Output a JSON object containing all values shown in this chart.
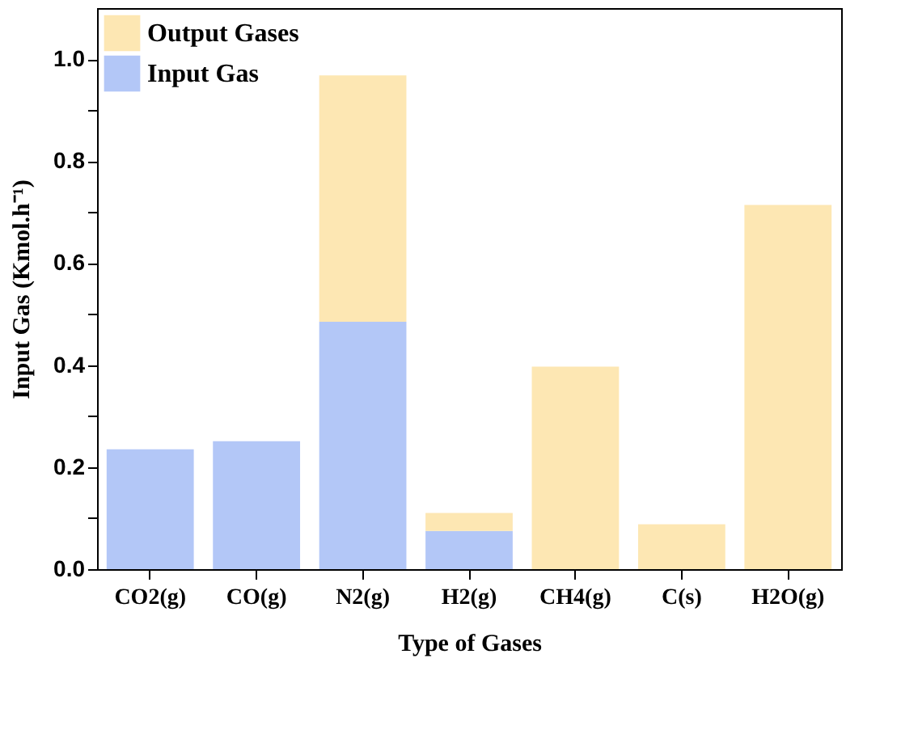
{
  "chart_data": {
    "type": "bar",
    "stacked": true,
    "xlabel": "Type of Gases",
    "ylabel": "Input Gas (Kmol.h⁻¹)",
    "categories": [
      "CO2(g)",
      "CO(g)",
      "N2(g)",
      "H2(g)",
      "CH4(g)",
      "C(s)",
      "H2O(g)"
    ],
    "series": [
      {
        "name": "Input Gas",
        "color": "#b3c7f7",
        "values": [
          0.235,
          0.251,
          0.485,
          0.075,
          null,
          null,
          null
        ]
      },
      {
        "name": "Output Gases",
        "color": "#fde7b3",
        "values": [
          null,
          null,
          0.483,
          0.035,
          0.397,
          0.088,
          0.714
        ]
      }
    ],
    "ylim": [
      0,
      1.1
    ],
    "yticks": [
      "0.0",
      {
        "value": 0.1,
        "label": null
      },
      {
        "value": 0.2,
        "label": "0.2"
      },
      {
        "value": 0.3,
        "label": null
      },
      {
        "value": 0.4,
        "label": "0.4"
      },
      {
        "value": 0.5,
        "label": null
      },
      {
        "value": 0.6,
        "label": "0.6"
      },
      {
        "value": 0.7,
        "label": null
      },
      {
        "value": 0.8,
        "label": "0.8"
      },
      {
        "value": 0.9,
        "label": null
      },
      {
        "value": 1.0,
        "label": "1.0"
      }
    ],
    "legend": "top left",
    "grid": false
  }
}
